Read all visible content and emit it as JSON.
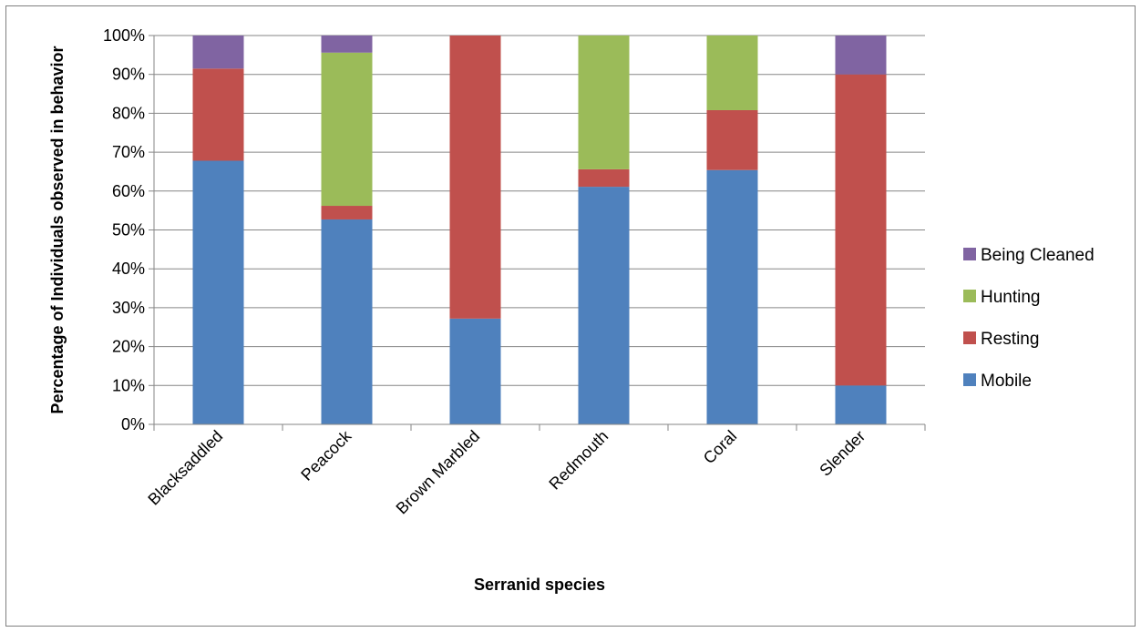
{
  "chart_data": {
    "type": "bar",
    "stacked": true,
    "percent_stacked": true,
    "categories": [
      "Blacksaddled",
      "Peacock",
      "Brown Marbled",
      "Redmouth",
      "Coral",
      "Slender"
    ],
    "series": [
      {
        "name": "Mobile",
        "color": "#4f81bd",
        "values": [
          67.8,
          52.7,
          27.2,
          61.1,
          65.4,
          10.0
        ]
      },
      {
        "name": "Resting",
        "color": "#c0504d",
        "values": [
          23.7,
          3.5,
          72.8,
          4.5,
          15.4,
          80.0
        ]
      },
      {
        "name": "Hunting",
        "color": "#9bbb59",
        "values": [
          0.0,
          39.4,
          0.0,
          34.4,
          19.2,
          0.0
        ]
      },
      {
        "name": "Being Cleaned",
        "color": "#8064a2",
        "values": [
          8.5,
          4.4,
          0.0,
          0.0,
          0.0,
          10.0
        ]
      }
    ],
    "y_ticks": [
      "0%",
      "10%",
      "20%",
      "30%",
      "40%",
      "50%",
      "60%",
      "70%",
      "80%",
      "90%",
      "100%"
    ],
    "ylim": [
      0,
      100
    ],
    "xlabel": "Serranid species",
    "ylabel": "Percentage of Individuals observed in behavior",
    "grid": true,
    "legend_position": "right",
    "legend_order": [
      "Being Cleaned",
      "Hunting",
      "Resting",
      "Mobile"
    ]
  }
}
